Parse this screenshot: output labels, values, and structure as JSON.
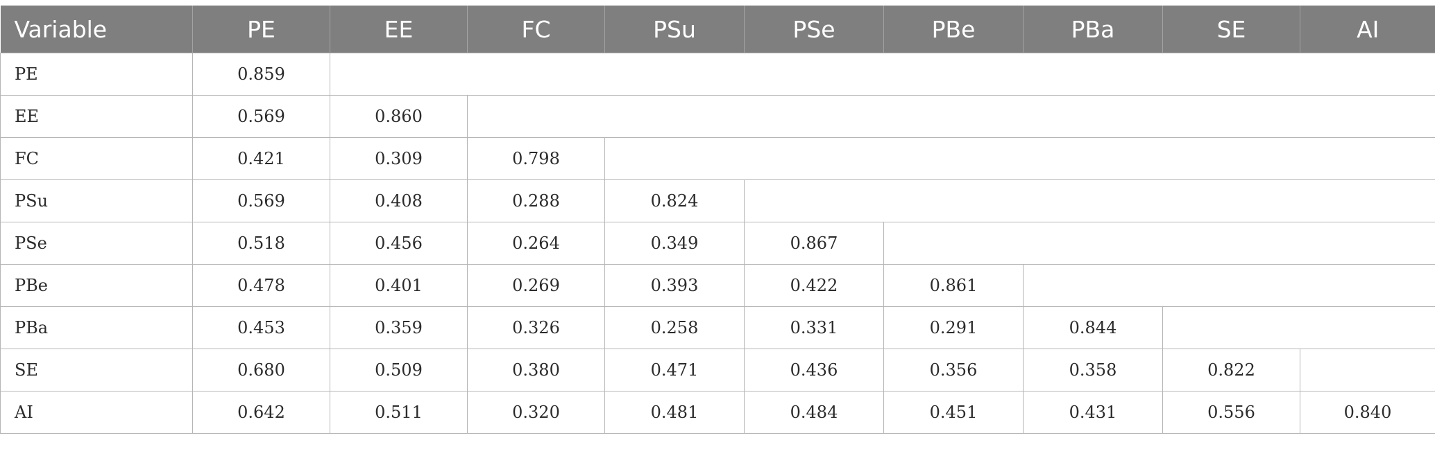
{
  "table": {
    "header_label": "Variable",
    "columns": [
      "PE",
      "EE",
      "FC",
      "PSu",
      "PSe",
      "PBe",
      "PBa",
      "SE",
      "AI"
    ],
    "rows": [
      {
        "label": "PE",
        "values": [
          "0.859"
        ]
      },
      {
        "label": "EE",
        "values": [
          "0.569",
          "0.860"
        ]
      },
      {
        "label": "FC",
        "values": [
          "0.421",
          "0.309",
          "0.798"
        ]
      },
      {
        "label": "PSu",
        "values": [
          "0.569",
          "0.408",
          "0.288",
          "0.824"
        ]
      },
      {
        "label": "PSe",
        "values": [
          "0.518",
          "0.456",
          "0.264",
          "0.349",
          "0.867"
        ]
      },
      {
        "label": "PBe",
        "values": [
          "0.478",
          "0.401",
          "0.269",
          "0.393",
          "0.422",
          "0.861"
        ]
      },
      {
        "label": "PBa",
        "values": [
          "0.453",
          "0.359",
          "0.326",
          "0.258",
          "0.331",
          "0.291",
          "0.844"
        ]
      },
      {
        "label": "SE",
        "values": [
          "0.680",
          "0.509",
          "0.380",
          "0.471",
          "0.436",
          "0.356",
          "0.358",
          "0.822"
        ]
      },
      {
        "label": "AI",
        "values": [
          "0.642",
          "0.511",
          "0.320",
          "0.481",
          "0.484",
          "0.451",
          "0.431",
          "0.556",
          "0.840"
        ]
      }
    ]
  }
}
